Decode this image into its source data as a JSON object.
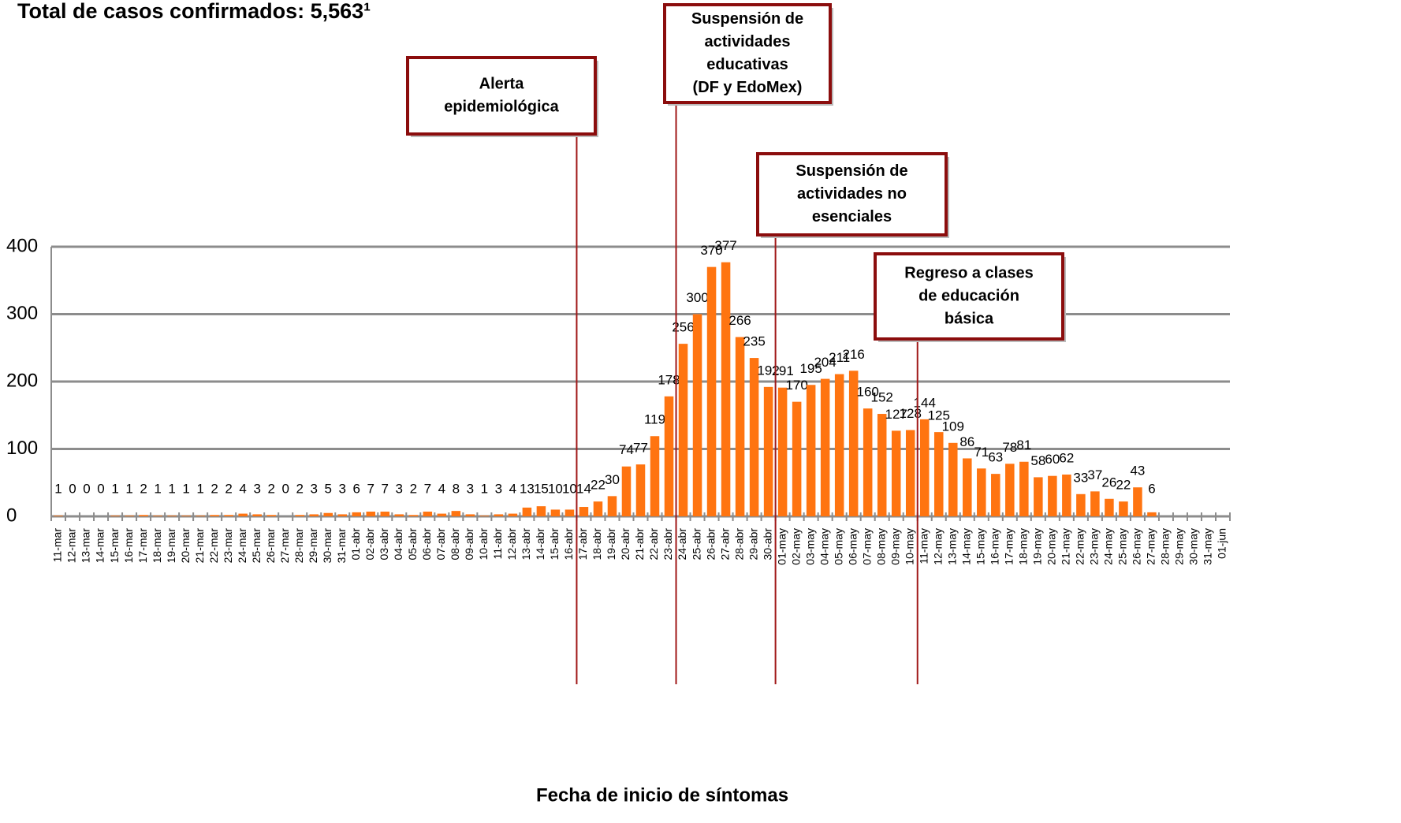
{
  "chart_data": {
    "type": "bar",
    "title": "Total de casos confirmados: 5,563¹",
    "x_label": "Fecha de inicio de síntomas",
    "categories": [
      "11-mar",
      "12-mar",
      "13-mar",
      "14-mar",
      "15-mar",
      "16-mar",
      "17-mar",
      "18-mar",
      "19-mar",
      "20-mar",
      "21-mar",
      "22-mar",
      "23-mar",
      "24-mar",
      "25-mar",
      "26-mar",
      "27-mar",
      "28-mar",
      "29-mar",
      "30-mar",
      "31-mar",
      "01-abr",
      "02-abr",
      "03-abr",
      "04-abr",
      "05-abr",
      "06-abr",
      "07-abr",
      "08-abr",
      "09-abr",
      "10-abr",
      "11-abr",
      "12-abr",
      "13-abr",
      "14-abr",
      "15-abr",
      "16-abr",
      "17-abr",
      "18-abr",
      "19-abr",
      "20-abr",
      "21-abr",
      "22-abr",
      "23-abr",
      "24-abr",
      "25-abr",
      "26-abr",
      "27-abr",
      "28-abr",
      "29-abr",
      "30-abr",
      "01-may",
      "02-may",
      "03-may",
      "04-may",
      "05-may",
      "06-may",
      "07-may",
      "08-may",
      "09-may",
      "10-may",
      "11-may",
      "12-may",
      "13-may",
      "14-may",
      "15-may",
      "16-may",
      "17-may",
      "18-may",
      "19-may",
      "20-may",
      "21-may",
      "22-may",
      "23-may",
      "24-may",
      "25-may",
      "26-may",
      "27-may",
      "28-may",
      "29-may",
      "30-may",
      "31-may",
      "01-jun"
    ],
    "values": [
      1,
      0,
      0,
      0,
      1,
      1,
      2,
      1,
      1,
      1,
      1,
      2,
      2,
      4,
      3,
      2,
      0,
      2,
      3,
      5,
      3,
      6,
      7,
      7,
      3,
      2,
      7,
      4,
      8,
      3,
      1,
      3,
      4,
      13,
      15,
      10,
      10,
      14,
      22,
      30,
      74,
      77,
      119,
      178,
      256,
      300,
      370,
      377,
      266,
      235,
      192,
      191,
      170,
      195,
      204,
      211,
      216,
      160,
      152,
      127,
      128,
      144,
      125,
      109,
      86,
      71,
      63,
      78,
      81,
      58,
      60,
      62,
      33,
      37,
      26,
      22,
      43,
      6,
      null,
      null,
      null,
      null,
      null
    ],
    "color": "#ff7410",
    "ylim": [
      0,
      400
    ],
    "yticks": [
      0,
      100,
      200,
      300,
      400
    ],
    "grid": true,
    "annotations": [
      {
        "lines": [
          "Alerta",
          "epidemiológica"
        ],
        "x": "17-abr"
      },
      {
        "lines": [
          "Suspensión de",
          "actividades",
          "educativas",
          "(DF y EdoMex)"
        ],
        "x": "24-abr"
      },
      {
        "lines": [
          "Suspensión de",
          "actividades no",
          "esenciales"
        ],
        "x": "01-may"
      },
      {
        "lines": [
          "Regreso a clases",
          "de educación",
          "básica"
        ],
        "x": "11-may"
      }
    ]
  }
}
